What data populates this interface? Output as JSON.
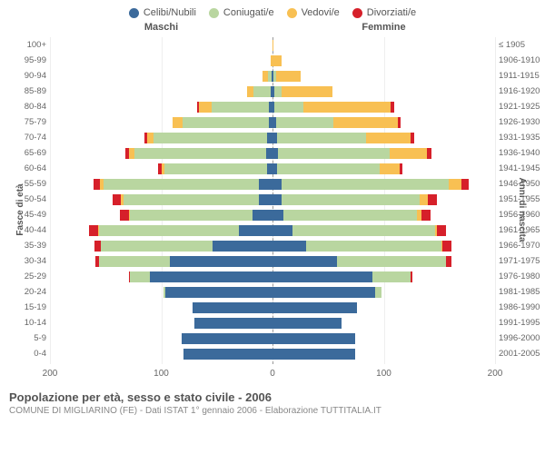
{
  "legend": [
    {
      "label": "Celibi/Nubili",
      "color": "#3b6a9b"
    },
    {
      "label": "Coniugati/e",
      "color": "#b9d6a0"
    },
    {
      "label": "Vedovi/e",
      "color": "#f8c053"
    },
    {
      "label": "Divorziati/e",
      "color": "#d6202a"
    }
  ],
  "headers": {
    "left": "Maschi",
    "right": "Femmine"
  },
  "axis_titles": {
    "left": "Fasce di età",
    "right": "Anni di nascita"
  },
  "x_axis": {
    "max": 200,
    "ticks": [
      200,
      100,
      0,
      100,
      200
    ]
  },
  "colors": {
    "background": "#ffffff",
    "grid": "#eeeeee",
    "center_line": "#999999",
    "text": "#666666"
  },
  "rows": [
    {
      "age": "100+",
      "birth": "≤ 1905",
      "m": [
        0,
        0,
        0,
        0
      ],
      "f": [
        0,
        0,
        1,
        0
      ]
    },
    {
      "age": "95-99",
      "birth": "1906-1910",
      "m": [
        0,
        0,
        2,
        0
      ],
      "f": [
        0,
        0,
        8,
        0
      ]
    },
    {
      "age": "90-94",
      "birth": "1911-1915",
      "m": [
        1,
        3,
        5,
        0
      ],
      "f": [
        1,
        2,
        22,
        0
      ]
    },
    {
      "age": "85-89",
      "birth": "1916-1920",
      "m": [
        2,
        15,
        6,
        0
      ],
      "f": [
        2,
        6,
        46,
        0
      ]
    },
    {
      "age": "80-84",
      "birth": "1921-1925",
      "m": [
        3,
        52,
        11,
        2
      ],
      "f": [
        2,
        26,
        78,
        3
      ]
    },
    {
      "age": "75-79",
      "birth": "1926-1930",
      "m": [
        3,
        78,
        9,
        0
      ],
      "f": [
        3,
        52,
        58,
        2
      ]
    },
    {
      "age": "70-74",
      "birth": "1931-1935",
      "m": [
        5,
        102,
        6,
        2
      ],
      "f": [
        4,
        80,
        40,
        3
      ]
    },
    {
      "age": "65-69",
      "birth": "1936-1940",
      "m": [
        6,
        118,
        5,
        3
      ],
      "f": [
        5,
        100,
        34,
        4
      ]
    },
    {
      "age": "60-64",
      "birth": "1941-1945",
      "m": [
        5,
        92,
        3,
        3
      ],
      "f": [
        4,
        92,
        18,
        3
      ]
    },
    {
      "age": "55-59",
      "birth": "1946-1950",
      "m": [
        12,
        140,
        3,
        6
      ],
      "f": [
        8,
        150,
        12,
        6
      ]
    },
    {
      "age": "50-54",
      "birth": "1951-1955",
      "m": [
        12,
        122,
        2,
        8
      ],
      "f": [
        8,
        124,
        8,
        8
      ]
    },
    {
      "age": "45-49",
      "birth": "1956-1960",
      "m": [
        18,
        110,
        1,
        8
      ],
      "f": [
        10,
        120,
        4,
        8
      ]
    },
    {
      "age": "40-44",
      "birth": "1961-1965",
      "m": [
        30,
        126,
        1,
        8
      ],
      "f": [
        18,
        128,
        2,
        8
      ]
    },
    {
      "age": "35-39",
      "birth": "1966-1970",
      "m": [
        54,
        100,
        0,
        6
      ],
      "f": [
        30,
        122,
        1,
        8
      ]
    },
    {
      "age": "30-34",
      "birth": "1971-1975",
      "m": [
        92,
        64,
        0,
        3
      ],
      "f": [
        58,
        98,
        0,
        5
      ]
    },
    {
      "age": "25-29",
      "birth": "1976-1980",
      "m": [
        110,
        18,
        0,
        1
      ],
      "f": [
        90,
        34,
        0,
        2
      ]
    },
    {
      "age": "20-24",
      "birth": "1981-1985",
      "m": [
        96,
        2,
        0,
        0
      ],
      "f": [
        92,
        6,
        0,
        0
      ]
    },
    {
      "age": "15-19",
      "birth": "1986-1990",
      "m": [
        72,
        0,
        0,
        0
      ],
      "f": [
        76,
        0,
        0,
        0
      ]
    },
    {
      "age": "10-14",
      "birth": "1991-1995",
      "m": [
        70,
        0,
        0,
        0
      ],
      "f": [
        62,
        0,
        0,
        0
      ]
    },
    {
      "age": "5-9",
      "birth": "1996-2000",
      "m": [
        82,
        0,
        0,
        0
      ],
      "f": [
        74,
        0,
        0,
        0
      ]
    },
    {
      "age": "0-4",
      "birth": "2001-2005",
      "m": [
        80,
        0,
        0,
        0
      ],
      "f": [
        74,
        0,
        0,
        0
      ]
    }
  ],
  "footer": {
    "title": "Popolazione per età, sesso e stato civile - 2006",
    "subtitle": "COMUNE DI MIGLIARINO (FE) - Dati ISTAT 1° gennaio 2006 - Elaborazione TUTTITALIA.IT"
  }
}
